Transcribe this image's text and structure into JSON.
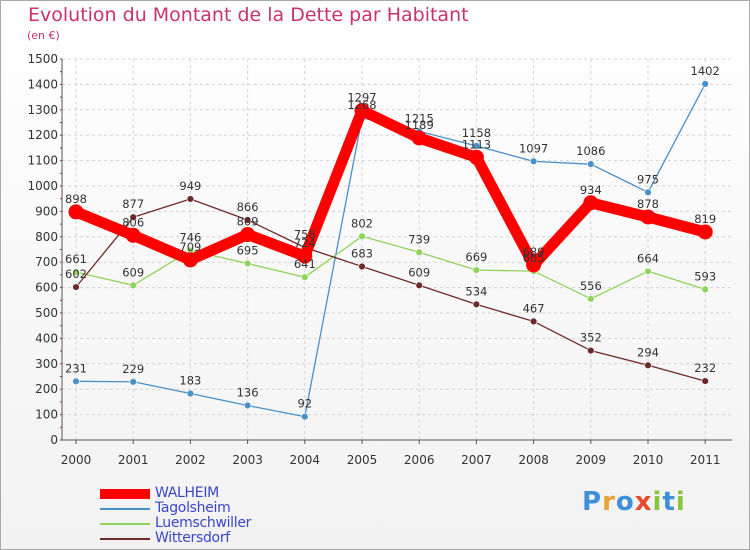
{
  "header": {
    "title": "Evolution du Montant de la Dette par Habitant",
    "unit": "(en €)"
  },
  "logo": {
    "letters": [
      "P",
      "r",
      "o",
      "x",
      "i",
      "t",
      "i"
    ],
    "colors": [
      "#3c8fd8",
      "#e8a23a",
      "#3c8fd8",
      "#e54a2a",
      "#8bc43f",
      "#3c8fd8",
      "#8bc43f"
    ]
  },
  "chart_data": {
    "type": "line",
    "x": [
      "2000",
      "2001",
      "2002",
      "2003",
      "2004",
      "2005",
      "2006",
      "2007",
      "2008",
      "2009",
      "2010",
      "2011"
    ],
    "ylim": [
      0,
      1500
    ],
    "yticks": [
      0,
      100,
      200,
      300,
      400,
      500,
      600,
      700,
      800,
      900,
      1000,
      1100,
      1200,
      1300,
      1400,
      1500
    ],
    "grid": true,
    "legend_position": "bottom-left",
    "series": [
      {
        "name": "WALHEIM",
        "color": "#ff0000",
        "values": [
          898,
          806,
          709,
          809,
          724,
          1297,
          1189,
          1113,
          689,
          934,
          878,
          819
        ]
      },
      {
        "name": "Tagolsheim",
        "color": "#4a90c8",
        "values": [
          231,
          229,
          183,
          136,
          92,
          1268,
          1215,
          1158,
          1097,
          1086,
          975,
          1402
        ]
      },
      {
        "name": "Luemschwiller",
        "color": "#8fd35a",
        "values": [
          661,
          609,
          746,
          695,
          641,
          802,
          739,
          669,
          665,
          556,
          664,
          593
        ]
      },
      {
        "name": "Wittersdorf",
        "color": "#6e2a2a",
        "values": [
          602,
          877,
          949,
          866,
          758,
          683,
          609,
          534,
          467,
          352,
          294,
          232
        ]
      }
    ]
  }
}
